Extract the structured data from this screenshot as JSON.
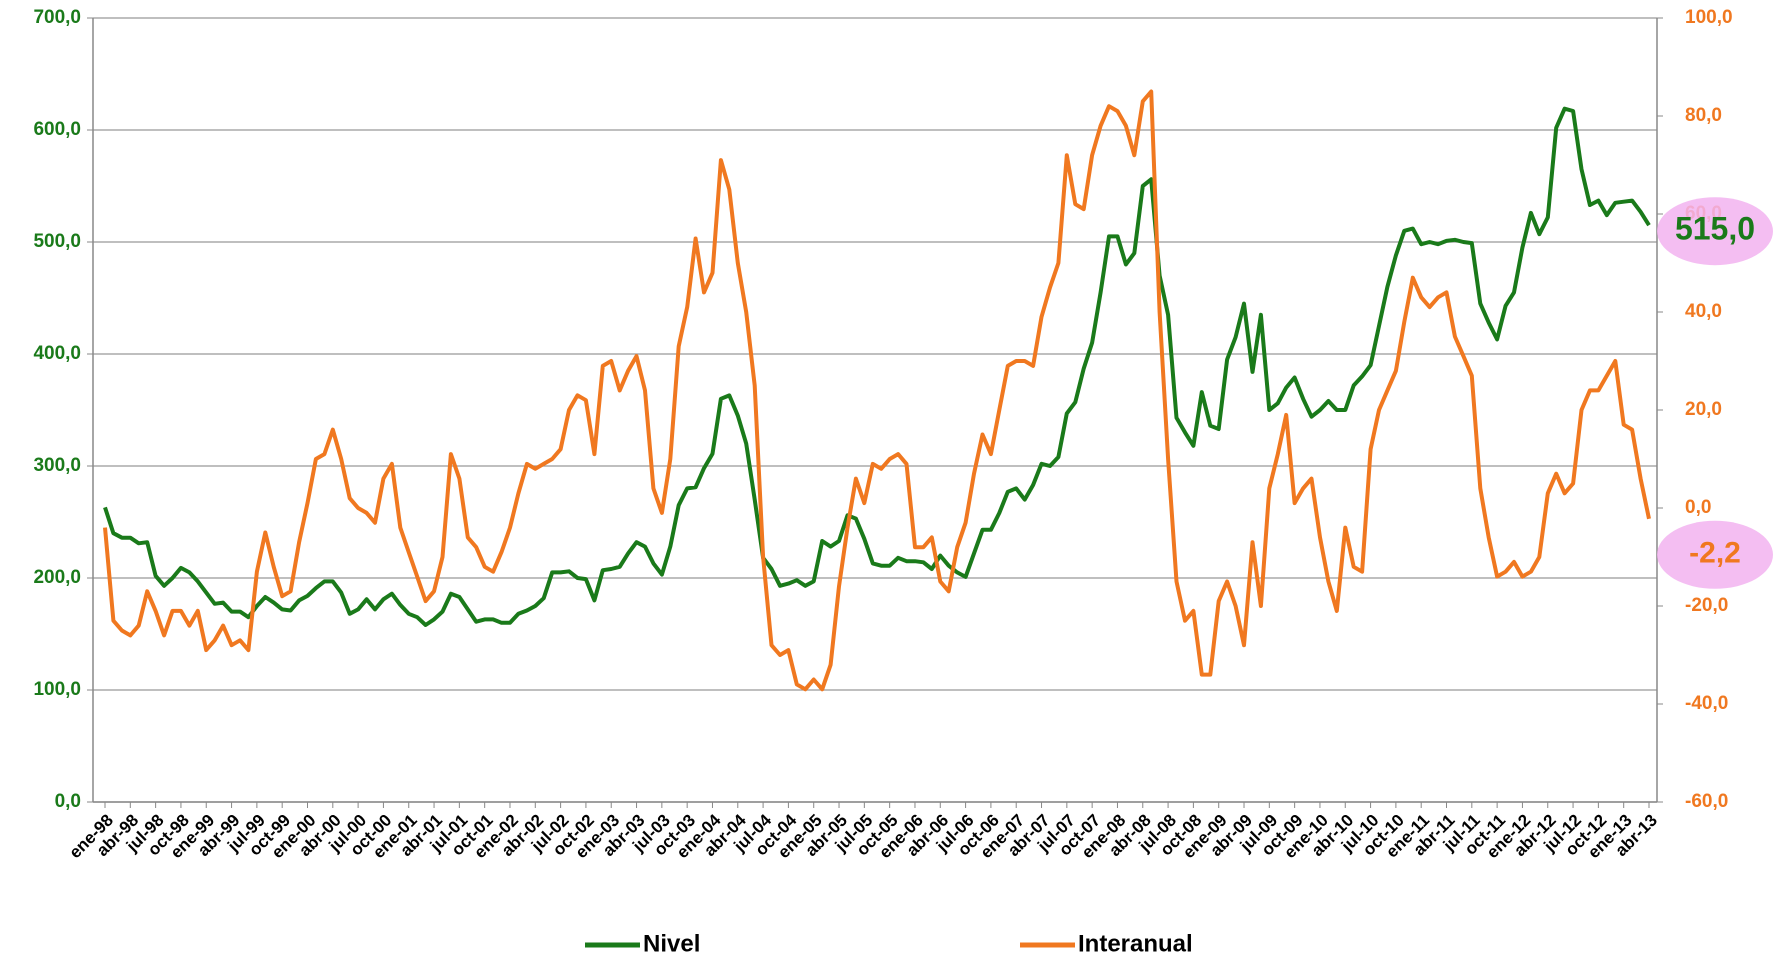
{
  "chart_data": {
    "type": "line",
    "categories": [
      "ene-98",
      null,
      null,
      "abr-98",
      null,
      null,
      "jul-98",
      null,
      null,
      "oct-98",
      null,
      null,
      "ene-99",
      null,
      null,
      "abr-99",
      null,
      null,
      "jul-99",
      null,
      null,
      "oct-99",
      null,
      null,
      "ene-00",
      null,
      null,
      "abr-00",
      null,
      null,
      "jul-00",
      null,
      null,
      "oct-00",
      null,
      null,
      "ene-01",
      null,
      null,
      "abr-01",
      null,
      null,
      "jul-01",
      null,
      null,
      "oct-01",
      null,
      null,
      "ene-02",
      null,
      null,
      "abr-02",
      null,
      null,
      "jul-02",
      null,
      null,
      "oct-02",
      null,
      null,
      "ene-03",
      null,
      null,
      "abr-03",
      null,
      null,
      "jul-03",
      null,
      null,
      "oct-03",
      null,
      null,
      "ene-04",
      null,
      null,
      "abr-04",
      null,
      null,
      "jul-04",
      null,
      null,
      "oct-04",
      null,
      null,
      "ene-05",
      null,
      null,
      "abr-05",
      null,
      null,
      "jul-05",
      null,
      null,
      "oct-05",
      null,
      null,
      "ene-06",
      null,
      null,
      "abr-06",
      null,
      null,
      "jul-06",
      null,
      null,
      "oct-06",
      null,
      null,
      "ene-07",
      null,
      null,
      "abr-07",
      null,
      null,
      "jul-07",
      null,
      null,
      "oct-07",
      null,
      null,
      "ene-08",
      null,
      null,
      "abr-08",
      null,
      null,
      "jul-08",
      null,
      null,
      "oct-08",
      null,
      null,
      "ene-09",
      null,
      null,
      "abr-09",
      null,
      null,
      "jul-09",
      null,
      null,
      "oct-09",
      null,
      null,
      "ene-10",
      null,
      null,
      "abr-10",
      null,
      null,
      "jul-10",
      null,
      null,
      "oct-10",
      null,
      null,
      "ene-11",
      null,
      null,
      "abr-11",
      null,
      null,
      "jul-11",
      null,
      null,
      "oct-11",
      null,
      null,
      "ene-12",
      null,
      null,
      "abr-12",
      null,
      null,
      "jul-12",
      null,
      null,
      "oct-12",
      null,
      null,
      "ene-13",
      null,
      null,
      "abr-13"
    ],
    "series": [
      {
        "name": "Nivel",
        "color": "#1a7a1a",
        "axis": "y",
        "values": [
          263,
          240,
          236,
          236,
          231,
          232,
          202,
          193,
          200,
          209,
          205,
          197,
          187,
          177,
          178,
          170,
          170,
          165,
          175,
          183,
          178,
          172,
          171,
          180,
          184,
          191,
          197,
          197,
          187,
          168,
          172,
          181,
          172,
          181,
          186,
          176,
          168,
          165,
          158,
          163,
          170,
          186,
          183,
          172,
          161,
          163,
          163,
          160,
          160,
          168,
          171,
          175,
          182,
          205,
          205,
          206,
          200,
          199,
          180,
          207,
          208,
          210,
          222,
          232,
          228,
          213,
          203,
          228,
          265,
          280,
          281,
          298,
          311,
          360,
          363,
          345,
          320,
          270,
          218,
          208,
          193,
          195,
          198,
          193,
          197,
          233,
          228,
          233,
          256,
          253,
          235,
          213,
          211,
          211,
          218,
          215,
          215,
          214,
          208,
          220,
          211,
          205,
          201,
          222,
          243,
          243,
          258,
          277,
          280,
          270,
          283,
          302,
          300,
          308,
          347,
          357,
          387,
          410,
          455,
          505,
          505,
          480,
          490,
          550,
          556,
          470,
          435,
          343,
          330,
          318,
          366,
          336,
          333,
          395,
          415,
          445,
          384,
          435,
          350,
          356,
          370,
          379,
          360,
          344,
          350,
          358,
          350,
          350,
          372,
          380,
          390,
          425,
          460,
          488,
          510,
          512,
          498,
          500,
          498,
          501,
          502,
          500,
          499,
          445,
          428,
          413,
          443,
          455,
          495,
          526,
          507,
          522,
          602,
          619,
          617,
          565,
          533,
          537,
          524,
          535,
          536,
          537,
          527,
          515
        ]
      },
      {
        "name": "Interanual",
        "color": "#f07820",
        "axis": "y2",
        "values": [
          -4,
          -23,
          -25,
          -26,
          -24,
          -17,
          -21,
          -26,
          -21,
          -21,
          -24,
          -21,
          -29,
          -27,
          -24,
          -28,
          -27,
          -29,
          -13,
          -5,
          -12,
          -18,
          -17,
          -7,
          1,
          10,
          11,
          16,
          10,
          2,
          0,
          -1,
          -3,
          6,
          9,
          -4,
          -9,
          -14,
          -19,
          -17,
          -10,
          11,
          6,
          -6,
          -8,
          -12,
          -13,
          -9,
          -4,
          3,
          9,
          8,
          9,
          10,
          12,
          20,
          23,
          22,
          11,
          29,
          30,
          24,
          28,
          31,
          24,
          4,
          -1,
          10,
          33,
          41,
          55,
          44,
          48,
          71,
          65,
          50,
          40,
          25,
          -10,
          -28,
          -30,
          -29,
          -36,
          -37,
          -35,
          -37,
          -32,
          -16,
          -4,
          6,
          1,
          9,
          8,
          10,
          11,
          9,
          -8,
          -8,
          -6,
          -15,
          -17,
          -8,
          -3,
          7,
          15,
          11,
          20,
          29,
          30,
          30,
          29,
          39,
          45,
          50,
          72,
          62,
          61,
          72,
          78,
          82,
          81,
          78,
          72,
          83,
          85,
          40,
          10,
          -15,
          -23,
          -21,
          -34,
          -34,
          -19,
          -15,
          -20,
          -28,
          -7,
          -20,
          4,
          11,
          19,
          1,
          4,
          6,
          -6,
          -15,
          -21,
          -4,
          -12,
          -13,
          12,
          20,
          24,
          28,
          38,
          47,
          43,
          41,
          43,
          44,
          35,
          31,
          27,
          4,
          -6,
          -14,
          -13,
          -11,
          -14,
          -13,
          -10,
          3,
          7,
          3,
          5,
          20,
          24,
          24,
          27,
          30,
          17,
          16,
          6,
          -2.2
        ]
      }
    ],
    "ylim": [
      0,
      700
    ],
    "yticks": [
      {
        "value": 0,
        "label": "0,0"
      },
      {
        "value": 100,
        "label": "100,0"
      },
      {
        "value": 200,
        "label": "200,0"
      },
      {
        "value": 300,
        "label": "300,0"
      },
      {
        "value": 400,
        "label": "400,0"
      },
      {
        "value": 500,
        "label": "500,0"
      },
      {
        "value": 600,
        "label": "600,0"
      },
      {
        "value": 700,
        "label": "700,0"
      }
    ],
    "y2lim": [
      -60,
      100
    ],
    "y2ticks": [
      {
        "value": -60,
        "label": "-60,0"
      },
      {
        "value": -40,
        "label": "-40,0"
      },
      {
        "value": -20,
        "label": "-20,0"
      },
      {
        "value": 0,
        "label": "0,0"
      },
      {
        "value": 20,
        "label": "20,0"
      },
      {
        "value": 40,
        "label": "40,0"
      },
      {
        "value": 60,
        "label": "60,0"
      },
      {
        "value": 80,
        "label": "80,0"
      },
      {
        "value": 100,
        "label": "100,0"
      }
    ],
    "grid": true,
    "legend": "bottom",
    "annotations": [
      "515,0",
      "-2,2"
    ]
  }
}
